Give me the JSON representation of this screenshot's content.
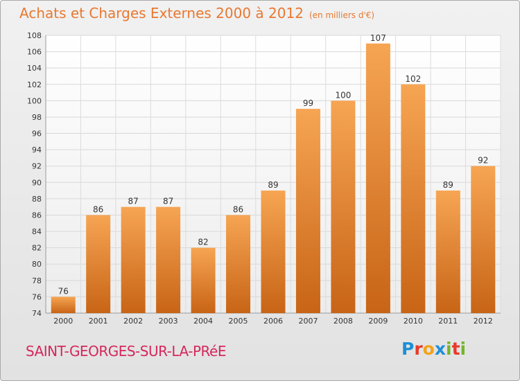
{
  "chart_data": {
    "type": "bar",
    "title": "Achats et Charges Externes 2000 à 2012",
    "subtitle": "(en milliers d'€)",
    "xlabel": "",
    "ylabel": "",
    "categories": [
      "2000",
      "2001",
      "2002",
      "2003",
      "2004",
      "2005",
      "2006",
      "2007",
      "2008",
      "2009",
      "2010",
      "2011",
      "2012"
    ],
    "values": [
      76,
      86,
      87,
      87,
      82,
      86,
      89,
      99,
      100,
      107,
      102,
      89,
      92
    ],
    "ylim": [
      74,
      108
    ],
    "yticks": [
      74,
      76,
      78,
      80,
      82,
      84,
      86,
      88,
      90,
      92,
      94,
      96,
      98,
      100,
      102,
      104,
      106,
      108
    ],
    "grid": true,
    "bar_color": "#f0923a"
  },
  "commune": "SAINT-GEORGES-SUR-LA-PRéE",
  "logo": {
    "letters": [
      "P",
      "r",
      "o",
      "x",
      "i",
      "t",
      "i"
    ],
    "colors": [
      "#1e8fd6",
      "#e83a2a",
      "#f2a31c",
      "#1e8fd6",
      "#74b52b",
      "#e83a2a",
      "#74b52b"
    ]
  }
}
